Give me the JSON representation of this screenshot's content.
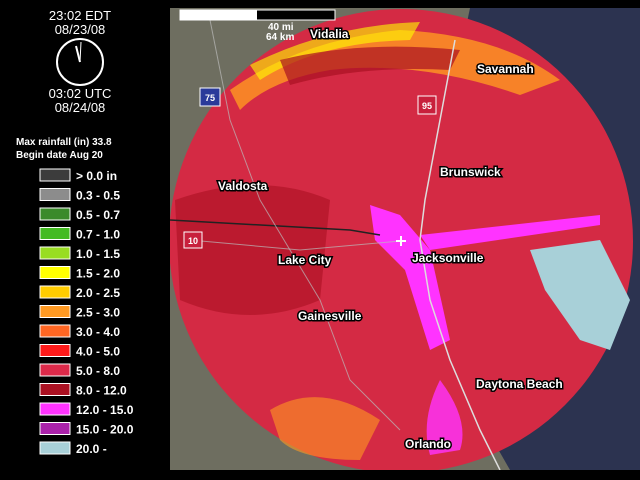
{
  "clock": {
    "local_time": "23:02 EDT",
    "local_date": "08/23/08",
    "utc_time": "03:02 UTC",
    "utc_date": "08/24/08"
  },
  "summary": {
    "max_rainfall": "Max rainfall (in) 33.8",
    "begin_date": "Begin date Aug 20"
  },
  "legend": [
    {
      "label": "> 0.0  in",
      "color": "#3c3c3c"
    },
    {
      "label": "0.3 - 0.5",
      "color": "#8c8c8c"
    },
    {
      "label": "0.5 - 0.7",
      "color": "#3a8a2a"
    },
    {
      "label": "0.7 - 1.0",
      "color": "#44bb22"
    },
    {
      "label": "1.0 - 1.5",
      "color": "#99dd22"
    },
    {
      "label": "1.5 - 2.0",
      "color": "#ffff00"
    },
    {
      "label": "2.0 - 2.5",
      "color": "#ffcc00"
    },
    {
      "label": "2.5 - 3.0",
      "color": "#ff9922"
    },
    {
      "label": "3.0 - 4.0",
      "color": "#ff6622"
    },
    {
      "label": "4.0 - 5.0",
      "color": "#ff1a1a"
    },
    {
      "label": "5.0 - 8.0",
      "color": "#dd2a4a"
    },
    {
      "label": "8.0 - 12.0",
      "color": "#aa1122"
    },
    {
      "label": "12.0 - 15.0",
      "color": "#ff33ff"
    },
    {
      "label": "15.0 - 20.0",
      "color": "#aa22aa"
    },
    {
      "label": "20.0 -",
      "color": "#a8d0d8"
    }
  ],
  "scale": {
    "miles": "40 mi",
    "km": "64 km"
  },
  "cities": [
    "Vidalia",
    "Savannah",
    "Valdosta",
    "Brunswick",
    "Lake City",
    "Jacksonville",
    "Gainesville",
    "Daytona Beach",
    "Orlando"
  ],
  "highways": [
    "75",
    "95",
    "10"
  ]
}
